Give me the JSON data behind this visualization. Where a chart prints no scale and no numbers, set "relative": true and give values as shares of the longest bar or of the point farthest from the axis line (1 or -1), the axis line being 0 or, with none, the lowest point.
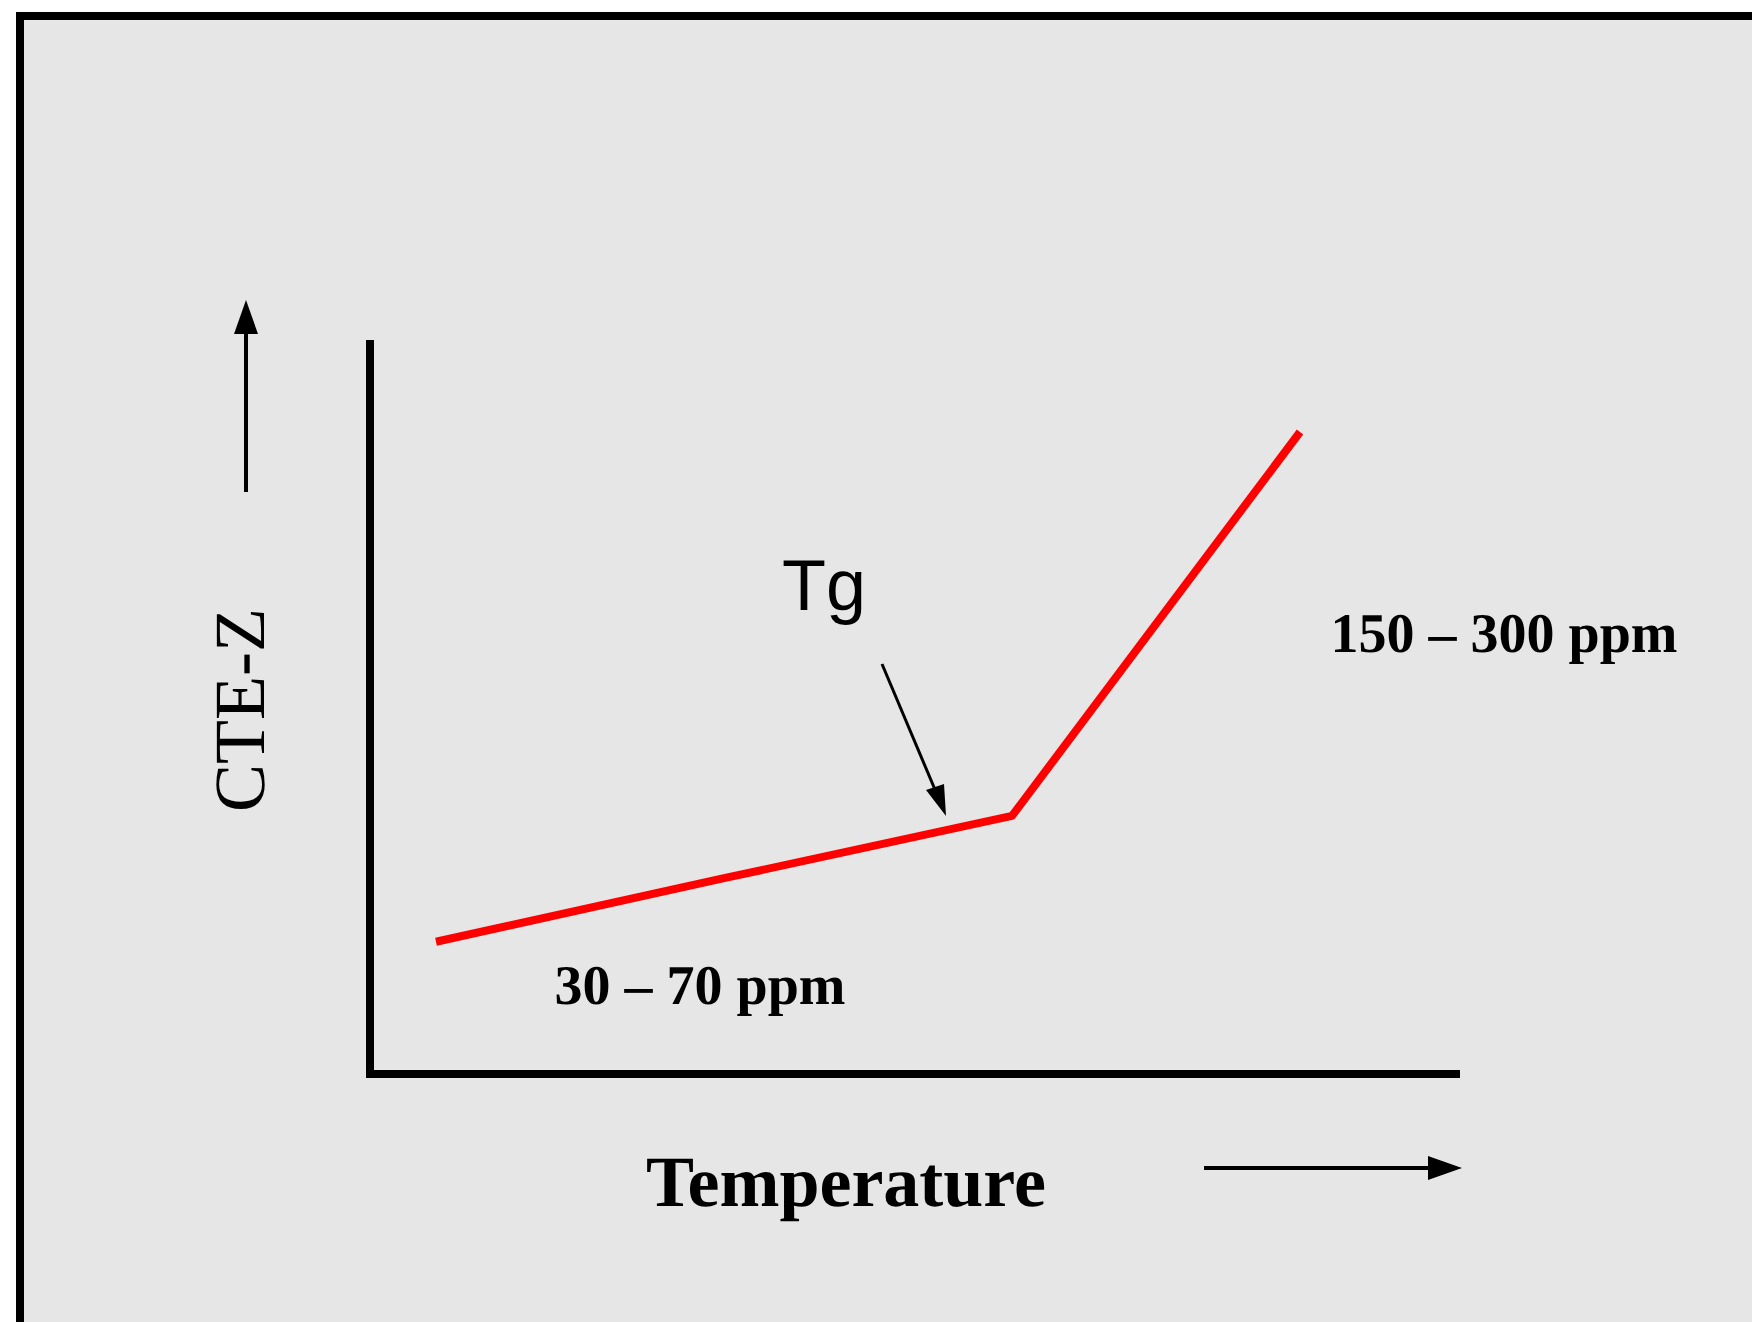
{
  "chart_data": {
    "type": "line",
    "relative": true,
    "xlabel": "Temperature",
    "ylabel": "CTE-Z",
    "categories": [
      null,
      null,
      null,
      null
    ],
    "series": [
      {
        "color": "#ff0000",
        "values": [
          0.206,
          0.305,
          0.402,
          1
        ]
      }
    ],
    "annotations": [
      "Tg",
      "30 – 70 ppm",
      "150 – 300 ppm"
    ]
  }
}
